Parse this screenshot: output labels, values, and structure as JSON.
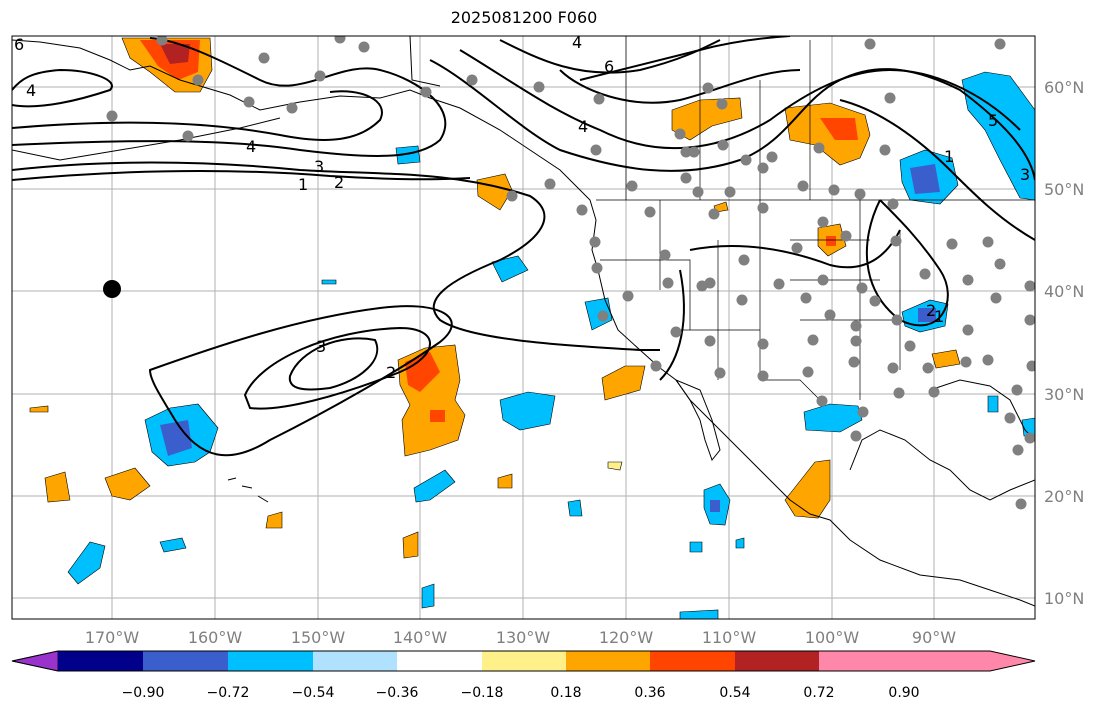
{
  "title": "2025081200 F060",
  "lat_labels": [
    "60°N",
    "50°N",
    "40°N",
    "30°N",
    "20°N",
    "10°N"
  ],
  "lon_labels": [
    "170°W",
    "160°W",
    "150°W",
    "140°W",
    "130°W",
    "120°W",
    "110°W",
    "100°W",
    "90°W"
  ],
  "colorbar": {
    "ticks": [
      "−0.90",
      "−0.72",
      "−0.54",
      "−0.36",
      "−0.18",
      "0.18",
      "0.36",
      "0.54",
      "0.72",
      "0.90"
    ],
    "colors": [
      "#9933cc",
      "#00008b",
      "#3a5fcd",
      "#00bfff",
      "#b0e2ff",
      "#ffffff",
      "#fff08a",
      "#ffa500",
      "#ff4500",
      "#b22222",
      "#ff88aa"
    ]
  },
  "contour_labels": [
    "6",
    "4",
    "4",
    "3",
    "2",
    "1",
    "6",
    "4",
    "4",
    "5",
    "1",
    "3",
    "2",
    "1",
    "2",
    "3"
  ],
  "colors": {
    "grid": "#b0b0b0",
    "contour": "#000000",
    "station": "#808080",
    "marker": "#000000"
  }
}
